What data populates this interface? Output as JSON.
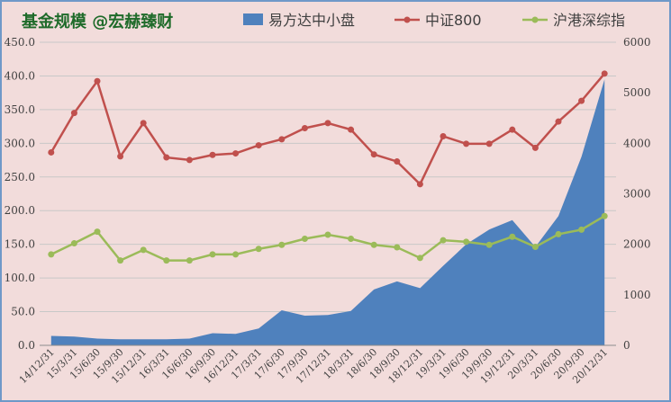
{
  "chart_data": {
    "type": "area",
    "title": "基金规模 @宏赫臻财",
    "categories": [
      "14/12/31",
      "15/3/31",
      "15/6/30",
      "15/9/30",
      "15/12/31",
      "16/3/31",
      "16/6/30",
      "16/9/30",
      "16/12/31",
      "17/3/31",
      "17/6/30",
      "17/9/30",
      "17/12/31",
      "18/3/31",
      "18/6/30",
      "18/9/30",
      "18/12/31",
      "19/3/31",
      "19/6/30",
      "19/9/30",
      "19/12/31",
      "20/3/31",
      "20/6/30",
      "20/9/30",
      "20/12/31"
    ],
    "series": [
      {
        "name": "易方达中小盘",
        "type": "area",
        "axis": "left",
        "color": "#4f81bd",
        "values": [
          14,
          13,
          10,
          9,
          9,
          9,
          10,
          18,
          17,
          25,
          52,
          44,
          45,
          51,
          83,
          95,
          85,
          118,
          150,
          172,
          186,
          146,
          192,
          280,
          395
        ]
      },
      {
        "name": "中证800",
        "type": "line",
        "axis": "right",
        "color": "#c0504d",
        "values": [
          3820,
          4600,
          5230,
          3740,
          4400,
          3720,
          3670,
          3770,
          3800,
          3960,
          4080,
          4300,
          4400,
          4270,
          3780,
          3640,
          3190,
          4140,
          3990,
          3990,
          4270,
          3910,
          4430,
          4840,
          5380
        ]
      },
      {
        "name": "沪港深综指",
        "type": "line",
        "axis": "right",
        "color": "#9bbb59",
        "values": [
          1800,
          2020,
          2250,
          1680,
          1890,
          1680,
          1680,
          1800,
          1800,
          1910,
          1990,
          2110,
          2190,
          2110,
          1990,
          1940,
          1730,
          2080,
          2050,
          1990,
          2150,
          1950,
          2200,
          2290,
          2560
        ]
      }
    ],
    "left_axis": {
      "min": 0,
      "max": 450,
      "step": 50,
      "ticks": [
        "0.0",
        "50.0",
        "100.0",
        "150.0",
        "200.0",
        "250.0",
        "300.0",
        "350.0",
        "400.0",
        "450.0"
      ]
    },
    "right_axis": {
      "min": 0,
      "max": 6000,
      "step": 1000,
      "ticks": [
        "0",
        "1000",
        "2000",
        "3000",
        "4000",
        "5000",
        "6000"
      ]
    },
    "grid": true,
    "legend_position": "top"
  }
}
